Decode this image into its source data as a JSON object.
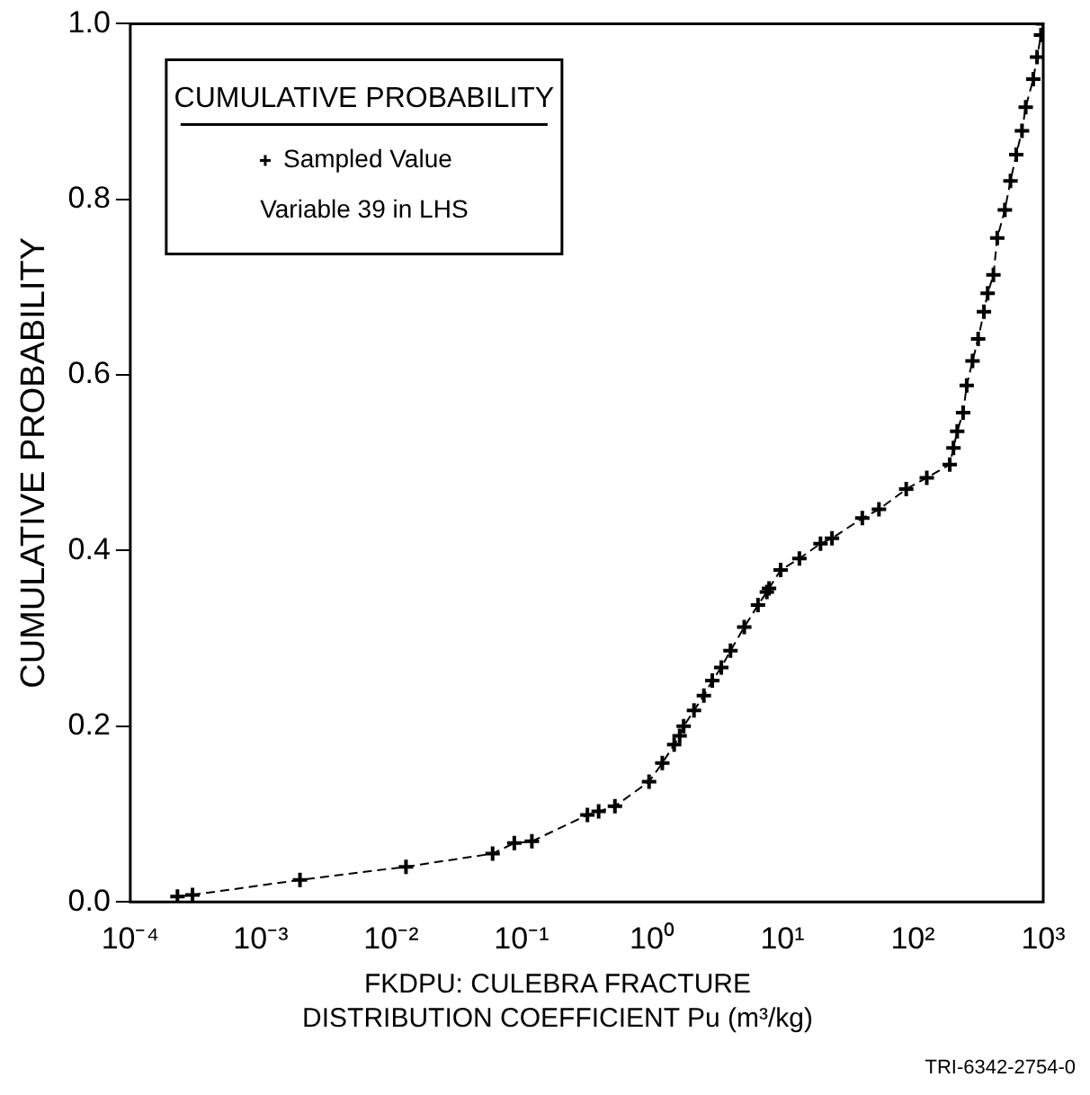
{
  "chart_data": {
    "type": "line",
    "xlabel": "FKDPU: CULEBRA FRACTURE DISTRIBUTION COEFFICIENT Pu (m³/kg)",
    "ylabel": "CUMULATIVE PROBABILITY",
    "legend_title": "CUMULATIVE PROBABILITY",
    "legend": "top left",
    "log": "x",
    "marker": "cross",
    "line_style": "dashed",
    "grid": false,
    "xlim": [
      0.0001,
      1000
    ],
    "ylim": [
      0,
      1
    ],
    "xticks": [
      {
        "value": 0.0001,
        "label": "10⁻⁴"
      },
      {
        "value": 0.001,
        "label": "10⁻³"
      },
      {
        "value": 0.01,
        "label": "10⁻²"
      },
      {
        "value": 0.1,
        "label": "10⁻¹"
      },
      {
        "value": 1,
        "label": "10⁰"
      },
      {
        "value": 10,
        "label": "10¹"
      },
      {
        "value": 100,
        "label": "10²"
      },
      {
        "value": 1000,
        "label": "10³"
      }
    ],
    "yticks": [
      {
        "value": 0,
        "label": "0.0"
      },
      {
        "value": 0.2,
        "label": "0.2"
      },
      {
        "value": 0.4,
        "label": "0.4"
      },
      {
        "value": 0.6,
        "label": "0.6"
      },
      {
        "value": 0.8,
        "label": "0.8"
      },
      {
        "value": 1,
        "label": "1.0"
      }
    ],
    "series": [
      {
        "name": "Sampled Value",
        "color": "#000000",
        "x": [
          0.00023,
          0.0003,
          0.002,
          0.013,
          0.06,
          0.088,
          0.12,
          0.32,
          0.39,
          0.52,
          0.95,
          1.2,
          1.48,
          1.63,
          1.75,
          2.1,
          2.5,
          2.9,
          3.4,
          4.0,
          5.1,
          6.5,
          7.6,
          7.9,
          9.7,
          13.5,
          19.6,
          24,
          41,
          55,
          89,
          128,
          192,
          205,
          219,
          243,
          259,
          287,
          317,
          351,
          375,
          415,
          444,
          508,
          561,
          621,
          687,
          734,
          839,
          897,
          961,
          1000
        ],
        "values": [
          0.006,
          0.008,
          0.025,
          0.04,
          0.055,
          0.067,
          0.069,
          0.099,
          0.103,
          0.109,
          0.137,
          0.158,
          0.179,
          0.189,
          0.2,
          0.218,
          0.235,
          0.252,
          0.267,
          0.286,
          0.313,
          0.338,
          0.353,
          0.357,
          0.378,
          0.391,
          0.408,
          0.414,
          0.437,
          0.447,
          0.47,
          0.483,
          0.498,
          0.517,
          0.536,
          0.557,
          0.588,
          0.616,
          0.641,
          0.672,
          0.693,
          0.714,
          0.756,
          0.788,
          0.821,
          0.851,
          0.878,
          0.905,
          0.937,
          0.962,
          0.987,
          1.0
        ]
      }
    ],
    "annotations": [
      "Variable 39 in LHS",
      "TRI-6342-2754-0"
    ]
  }
}
